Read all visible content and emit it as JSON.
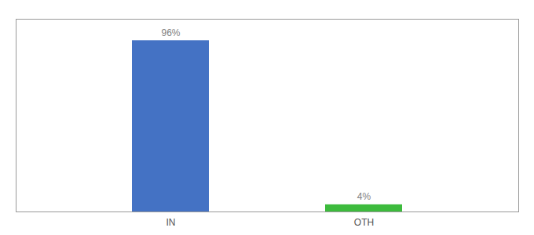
{
  "chart_data": {
    "type": "bar",
    "categories": [
      "IN",
      "OTH"
    ],
    "values": [
      96,
      4
    ],
    "value_labels": [
      "96%",
      "4%"
    ],
    "colors": [
      "#4472c4",
      "#3dbb3d"
    ],
    "ylim": [
      0,
      108
    ],
    "data_labels": true,
    "tick_labels": "x"
  }
}
